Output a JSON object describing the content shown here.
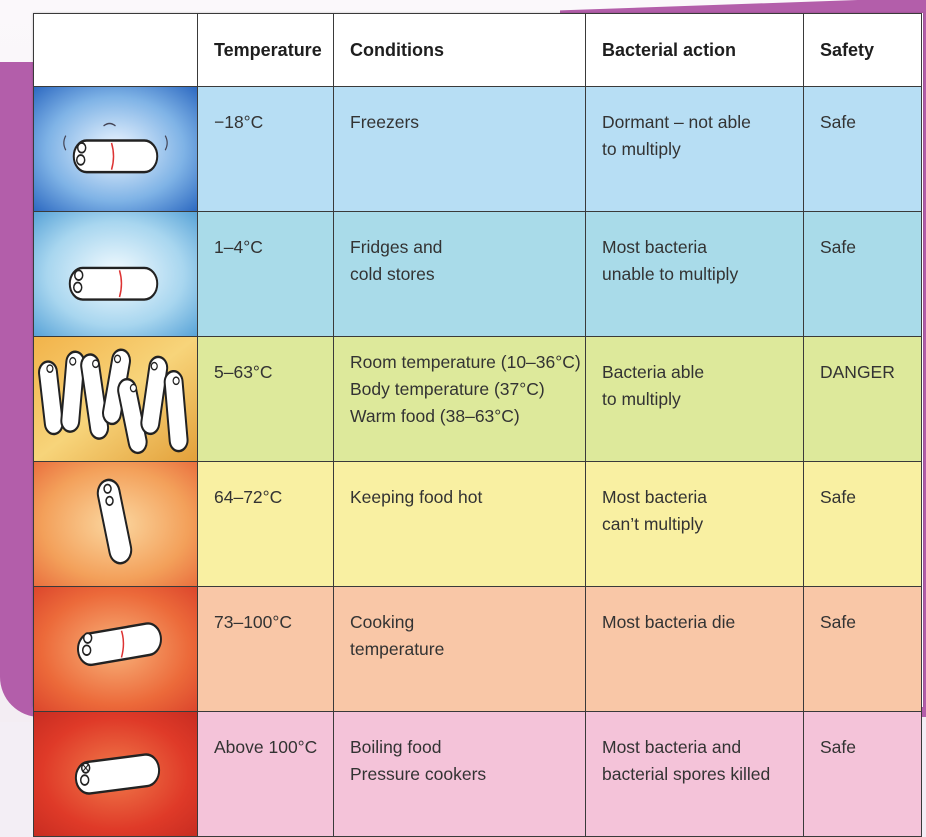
{
  "colors": {
    "purple_background": "#b35eaa",
    "row_freezer": "#b7def4",
    "row_fridge": "#a9dbe9",
    "row_room": "#dde99b",
    "row_hot": "#f9f0a2",
    "row_cooking": "#f9c7a7",
    "row_boiling": "#f4c3d9"
  },
  "table": {
    "headers": {
      "temperature": "Temperature",
      "conditions": "Conditions",
      "bacterial_action": "Bacterial action",
      "safety": "Safety"
    },
    "rows": [
      {
        "illustration": "bacterium-frozen-icon",
        "temperature": "−18°C",
        "conditions": [
          "Freezers"
        ],
        "bacterial_action": [
          "Dormant – not able",
          "to multiply"
        ],
        "safety": "Safe"
      },
      {
        "illustration": "bacterium-cold-icon",
        "temperature": "1–4°C",
        "conditions": [
          "Fridges and",
          "cold stores"
        ],
        "bacterial_action": [
          "Most bacteria",
          "unable to multiply"
        ],
        "safety": "Safe"
      },
      {
        "illustration": "bacteria-multiplying-icon",
        "temperature": "5–63°C",
        "conditions": [
          "Room temperature (10–36°C)",
          "Body temperature (37°C)",
          "Warm food (38–63°C)"
        ],
        "bacterial_action": [
          "Bacteria able",
          "to multiply"
        ],
        "safety": "DANGER"
      },
      {
        "illustration": "bacterium-hot-icon",
        "temperature": "64–72°C",
        "conditions": [
          "Keeping food hot"
        ],
        "bacterial_action": [
          "Most bacteria",
          "can’t multiply"
        ],
        "safety": "Safe"
      },
      {
        "illustration": "bacterium-cooking-icon",
        "temperature": "73–100°C",
        "conditions": [
          "Cooking",
          "temperature"
        ],
        "bacterial_action": [
          "Most bacteria die"
        ],
        "safety": "Safe"
      },
      {
        "illustration": "bacterium-dead-icon",
        "temperature": "Above 100°C",
        "conditions": [
          "Boiling food",
          "Pressure cookers"
        ],
        "bacterial_action": [
          "Most bacteria and",
          "bacterial spores killed"
        ],
        "safety": "Safe"
      }
    ]
  }
}
